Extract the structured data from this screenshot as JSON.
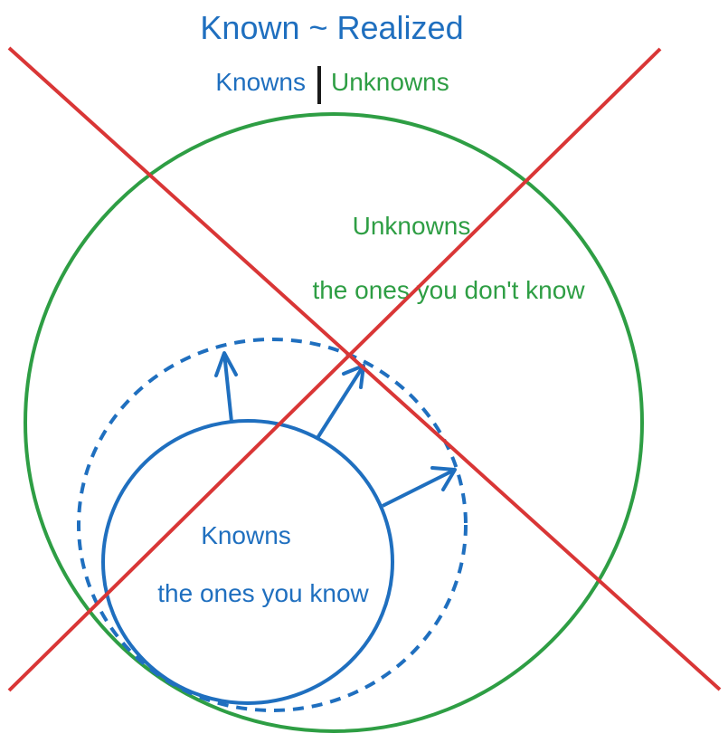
{
  "title": "Known ~ Realized",
  "legend": {
    "known_label": "Knowns",
    "unknown_label": "Unknowns"
  },
  "unknowns_region": {
    "title": "Unknowns",
    "subtitle": "the ones you don't know"
  },
  "knowns_region": {
    "title": "Knowns",
    "subtitle": "the ones you know"
  },
  "colors": {
    "known": "#1f6fbf",
    "unknown": "#2e9e44",
    "cross": "#d93636",
    "divider": "#1a1a1a"
  }
}
